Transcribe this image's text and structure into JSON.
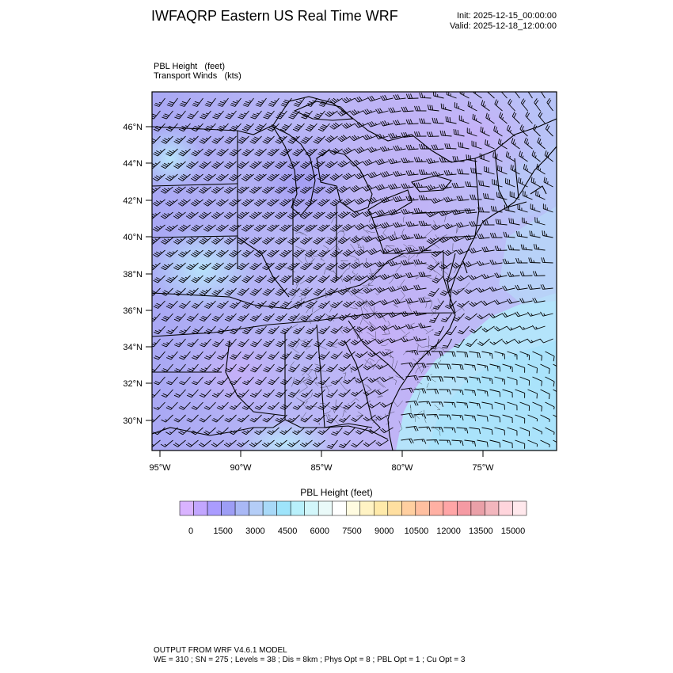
{
  "header": {
    "title": "IWFAQRP Eastern US Real Time WRF",
    "init": "Init: 2025-12-15_00:00:00",
    "valid": "Valid: 2025-12-18_12:00:00"
  },
  "fields": {
    "line1": "PBL Height   (feet)",
    "line2": "Transport Winds   (kts)"
  },
  "map": {
    "lat_labels": [
      "46°N",
      "44°N",
      "42°N",
      "40°N",
      "38°N",
      "36°N",
      "34°N",
      "32°N",
      "30°N"
    ],
    "lon_labels": [
      "95°W",
      "90°W",
      "85°W",
      "80°W",
      "75°W"
    ]
  },
  "colorbar": {
    "title": "PBL Height  (feet)",
    "labels": [
      "0",
      "1500",
      "3000",
      "4500",
      "6000",
      "7500",
      "9000",
      "10500",
      "12000",
      "13500",
      "15000"
    ],
    "colors": [
      "#d9b3ff",
      "#c2a6ff",
      "#aa9cff",
      "#9d9df5",
      "#a9b8f5",
      "#b4cdf7",
      "#a8d9f8",
      "#9ee4fb",
      "#b8f0fb",
      "#d2f6fa",
      "#eafaf9",
      "#ffffff",
      "#fffbe0",
      "#fff3c4",
      "#ffeaaa",
      "#ffdfa0",
      "#ffcfa0",
      "#ffbfa0",
      "#ffb0a3",
      "#ffa5a6",
      "#f59aa3",
      "#eaa0a8",
      "#f2b6bd",
      "#ffd5dc",
      "#ffe8ec"
    ]
  },
  "footer": {
    "line1": "OUTPUT FROM WRF V4.6.1 MODEL",
    "line2": "WE = 310 ; SN = 275 ; Levels = 38 ; Dis = 8km ; Phys Opt = 8 ; PBL Opt = 1 ; Cu Opt = 3"
  }
}
